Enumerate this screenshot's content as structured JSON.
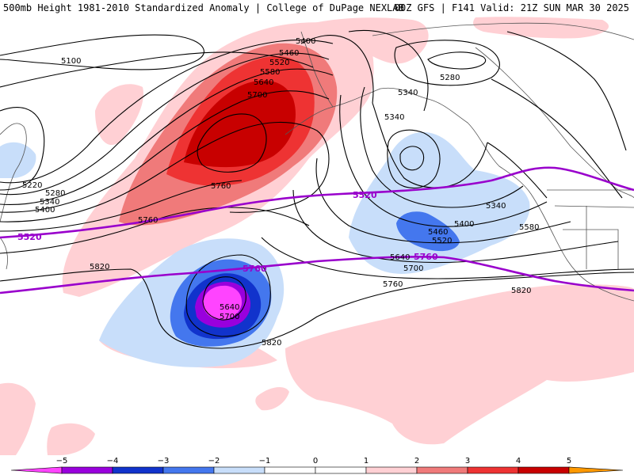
{
  "header": {
    "left_title": "500mb Height 1981-2010 Standardized Anomaly | College of DuPage NEXLAB",
    "right_title": "00Z GFS | F141 Valid: 21Z SUN MAR 30 2025"
  },
  "colors": {
    "anom_neg5": "#ff44ff",
    "anom_neg4": "#9900dd",
    "anom_neg3": "#1133cc",
    "anom_neg2": "#4477ee",
    "anom_neg1": "#c8defa",
    "anom_pos1": "#ffd0d4",
    "anom_pos2": "#f07a7a",
    "anom_pos3": "#ee3333",
    "anom_pos4": "#c80000",
    "anom_pos5": "#ff9900",
    "contour": "#000000",
    "highlight_contour": "#9900cc",
    "coastline": "#555555"
  },
  "contour_labels": {
    "l5100": "5100",
    "l5220": "5220",
    "l5280_w": "5280",
    "l5340_w": "5340",
    "l5400_w": "5400",
    "l5400_n": "5400",
    "l5460_n": "5460",
    "l5520_n": "5520",
    "l5580_n": "5580",
    "l5640_n": "5640",
    "l5700_n": "5700",
    "l5760_c": "5760",
    "l5760_w": "5760",
    "l5820_w": "5820",
    "l5640_s": "5640",
    "l5700_s": "5700",
    "l5820_s": "5820",
    "l5280_ne": "5280",
    "l5340_ne": "5340",
    "l5340_e": "5340",
    "l5340_e2": "5340",
    "l5400_e": "5400",
    "l5460_e": "5460",
    "l5520_e": "5520",
    "l5580_e": "5580",
    "l5640_e": "5640",
    "l5700_e": "5700",
    "l5760_e": "5760",
    "l5820_e": "5820",
    "p5520_w": "5520",
    "p5520_c": "5520",
    "p5760_c": "5760",
    "p5760_e": "5760"
  },
  "legend": {
    "ticks": [
      "−5",
      "−4",
      "−3",
      "−2",
      "−1",
      "0",
      "1",
      "2",
      "3",
      "4",
      "5"
    ]
  }
}
